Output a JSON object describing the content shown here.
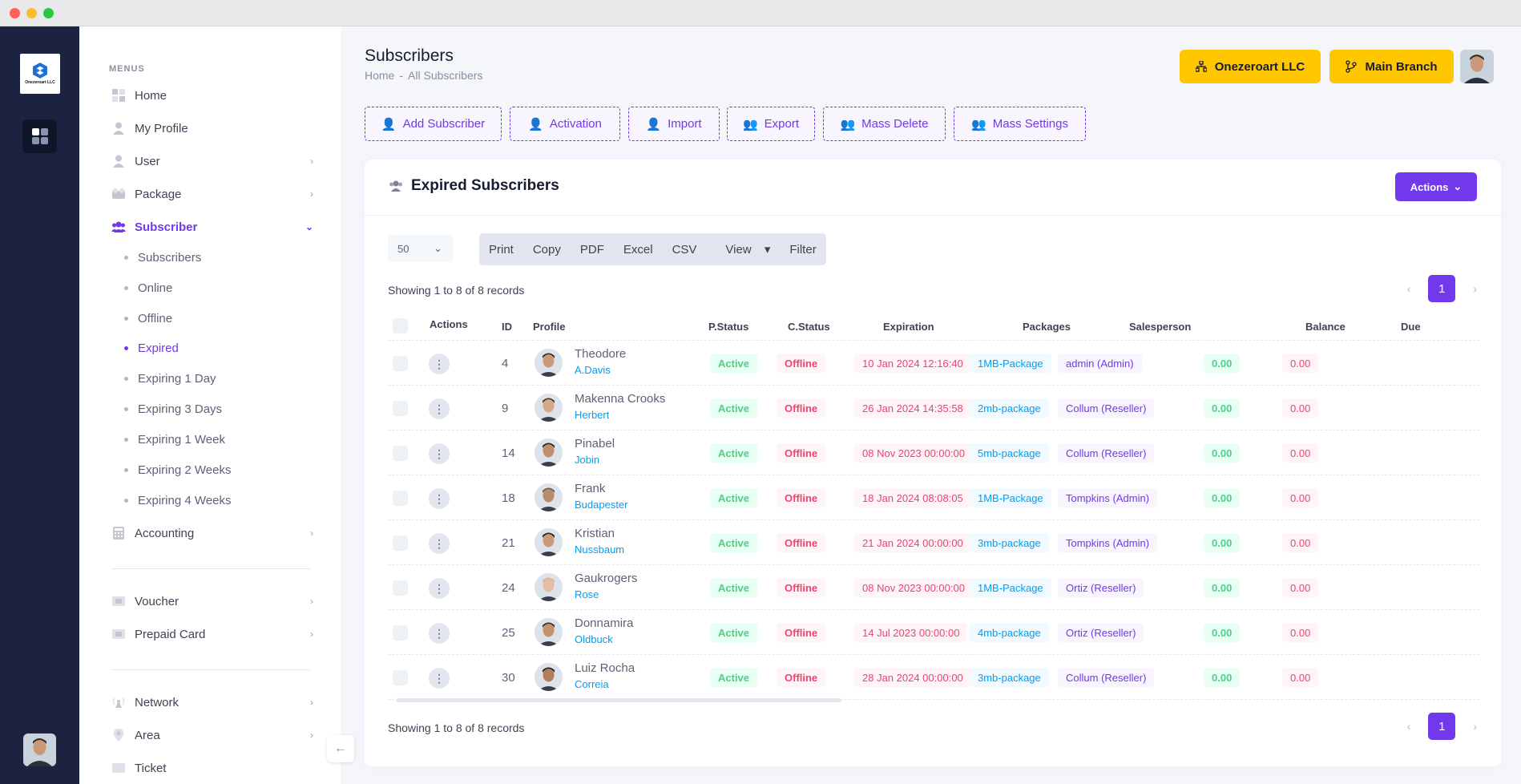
{
  "sidebar": {
    "brand": "Onezeroart LLC",
    "menus_title": "MENUS",
    "items": [
      {
        "label": "Home",
        "icon": "grid-icon"
      },
      {
        "label": "My Profile",
        "icon": "user-icon"
      },
      {
        "label": "User",
        "icon": "user-icon"
      },
      {
        "label": "Package",
        "icon": "package-icon"
      },
      {
        "label": "Subscriber",
        "icon": "users-icon"
      },
      {
        "label": "Accounting",
        "icon": "calculator-icon"
      },
      {
        "label": "Voucher",
        "icon": "ticket-icon"
      },
      {
        "label": "Prepaid Card",
        "icon": "card-icon"
      },
      {
        "label": "Network",
        "icon": "antenna-icon"
      },
      {
        "label": "Area",
        "icon": "pin-icon"
      },
      {
        "label": "Ticket",
        "icon": "ticket-icon"
      }
    ],
    "subscriber_sub": [
      "Subscribers",
      "Online",
      "Offline",
      "Expired",
      "Expiring 1 Day",
      "Expiring 3 Days",
      "Expiring 1 Week",
      "Expiring 2 Weeks",
      "Expiring 4 Weeks"
    ]
  },
  "header": {
    "title": "Subscribers",
    "breadcrumb": [
      "Home",
      "-",
      "All Subscribers"
    ],
    "company_btn": "Onezeroart LLC",
    "branch_btn": "Main Branch"
  },
  "toolbar": [
    "Add Subscriber",
    "Activation",
    "Import",
    "Export",
    "Mass Delete",
    "Mass Settings"
  ],
  "card": {
    "title": "Expired Subscribers",
    "actions_btn": "Actions",
    "per_page": "50",
    "export_buttons": [
      "Print",
      "Copy",
      "PDF",
      "Excel",
      "CSV",
      "View",
      "Filter"
    ],
    "showing": "Showing 1 to 8 of 8 records",
    "page": "1"
  },
  "table": {
    "columns": [
      "Actions",
      "ID",
      "Profile",
      "P.Status",
      "C.Status",
      "Expiration",
      "Packages",
      "Salesperson",
      "Balance",
      "Due"
    ],
    "rows": [
      {
        "id": "4",
        "name": "Theodore",
        "user": "A.Davis",
        "pstatus": "Active",
        "cstatus": "Offline",
        "expiration": "10 Jan 2024 12:16:40",
        "package": "1MB-Package",
        "salesperson": "admin (Admin)",
        "balance": "0.00",
        "due": "0.00"
      },
      {
        "id": "9",
        "name": "Makenna Crooks",
        "user": "Herbert",
        "pstatus": "Active",
        "cstatus": "Offline",
        "expiration": "26 Jan 2024 14:35:58",
        "package": "2mb-package",
        "salesperson": "Collum (Reseller)",
        "balance": "0.00",
        "due": "0.00"
      },
      {
        "id": "14",
        "name": "Pinabel",
        "user": "Jobin",
        "pstatus": "Active",
        "cstatus": "Offline",
        "expiration": "08 Nov 2023 00:00:00",
        "package": "5mb-package",
        "salesperson": "Collum (Reseller)",
        "balance": "0.00",
        "due": "0.00"
      },
      {
        "id": "18",
        "name": "Frank",
        "user": "Budapester",
        "pstatus": "Active",
        "cstatus": "Offline",
        "expiration": "18 Jan 2024 08:08:05",
        "package": "1MB-Package",
        "salesperson": "Tompkins (Admin)",
        "balance": "0.00",
        "due": "0.00"
      },
      {
        "id": "21",
        "name": "Kristian",
        "user": "Nussbaum",
        "pstatus": "Active",
        "cstatus": "Offline",
        "expiration": "21 Jan 2024 00:00:00",
        "package": "3mb-package",
        "salesperson": "Tompkins (Admin)",
        "balance": "0.00",
        "due": "0.00"
      },
      {
        "id": "24",
        "name": "Gaukrogers",
        "user": "Rose",
        "pstatus": "Active",
        "cstatus": "Offline",
        "expiration": "08 Nov 2023 00:00:00",
        "package": "1MB-Package",
        "salesperson": "Ortiz (Reseller)",
        "balance": "0.00",
        "due": "0.00"
      },
      {
        "id": "25",
        "name": "Donnamira",
        "user": "Oldbuck",
        "pstatus": "Active",
        "cstatus": "Offline",
        "expiration": "14 Jul 2023 00:00:00",
        "package": "4mb-package",
        "salesperson": "Ortiz (Reseller)",
        "balance": "0.00",
        "due": "0.00"
      },
      {
        "id": "30",
        "name": "Luiz Rocha",
        "user": "Correia",
        "pstatus": "Active",
        "cstatus": "Offline",
        "expiration": "28 Jan 2024 00:00:00",
        "package": "3mb-package",
        "salesperson": "Collum (Reseller)",
        "balance": "0.00",
        "due": "0.00"
      }
    ]
  },
  "colors": {
    "accent": "#7239ea",
    "yellow": "#ffc700",
    "rail": "#1b2340"
  }
}
